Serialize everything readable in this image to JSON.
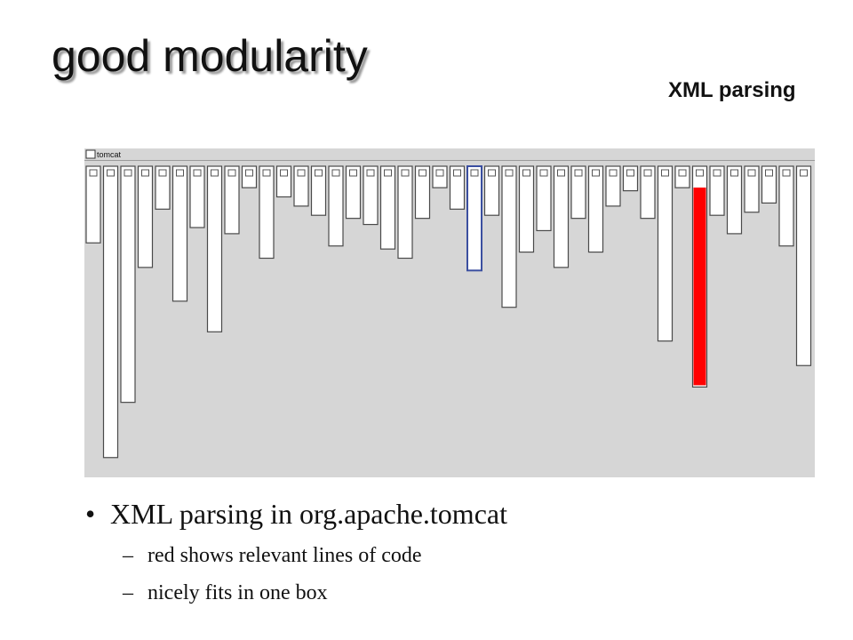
{
  "title": "good modularity",
  "subtitle": "XML parsing",
  "viz": {
    "root_label": "tomcat",
    "highlight_color": "#ff0000",
    "selected_outline_color": "#3b4fa0",
    "columns": [
      {
        "level": 0.25
      },
      {
        "level": 0.95
      },
      {
        "level": 0.77
      },
      {
        "level": 0.33
      },
      {
        "level": 0.14
      },
      {
        "level": 0.44
      },
      {
        "level": 0.2
      },
      {
        "level": 0.54
      },
      {
        "level": 0.22
      },
      {
        "level": 0.07
      },
      {
        "level": 0.3
      },
      {
        "level": 0.1
      },
      {
        "level": 0.13
      },
      {
        "level": 0.16
      },
      {
        "level": 0.26
      },
      {
        "level": 0.17
      },
      {
        "level": 0.19
      },
      {
        "level": 0.27
      },
      {
        "level": 0.3
      },
      {
        "level": 0.17
      },
      {
        "level": 0.07
      },
      {
        "level": 0.14
      },
      {
        "level": 0.34,
        "selected": true
      },
      {
        "level": 0.16
      },
      {
        "level": 0.46
      },
      {
        "level": 0.28
      },
      {
        "level": 0.21
      },
      {
        "level": 0.33
      },
      {
        "level": 0.17
      },
      {
        "level": 0.28
      },
      {
        "level": 0.13
      },
      {
        "level": 0.08
      },
      {
        "level": 0.17
      },
      {
        "level": 0.57
      },
      {
        "level": 0.07
      },
      {
        "level": 0.72,
        "highlight": true
      },
      {
        "level": 0.16
      },
      {
        "level": 0.22
      },
      {
        "level": 0.15
      },
      {
        "level": 0.12
      },
      {
        "level": 0.26
      },
      {
        "level": 0.65
      }
    ]
  },
  "bullets": {
    "main": "XML parsing in org.apache.tomcat",
    "subs": [
      "red shows relevant lines of code",
      "nicely fits in one box"
    ]
  }
}
